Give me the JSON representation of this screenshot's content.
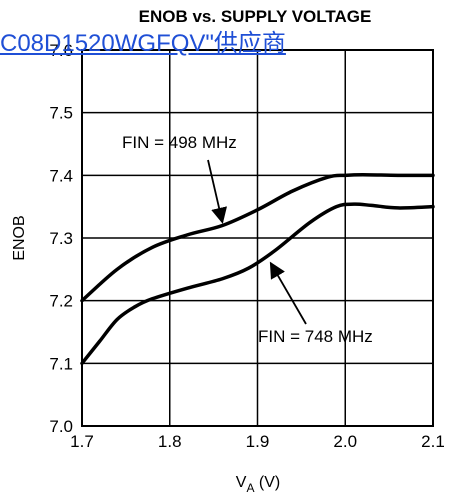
{
  "overlay_link": {
    "text": "C08D1520WGFQV\"供应商",
    "color": "#1f4fd6"
  },
  "chart_data": {
    "type": "line",
    "title": "ENOB vs. SUPPLY VOLTAGE",
    "xlabel_main": "V",
    "xlabel_sub": "A",
    "xlabel_unit": " (V)",
    "ylabel": "ENOB",
    "xlim": [
      1.7,
      2.1
    ],
    "ylim": [
      7.0,
      7.6
    ],
    "x_ticks": [
      "1.7",
      "1.8",
      "1.9",
      "2.0",
      "2.1"
    ],
    "y_ticks": [
      "7.0",
      "7.1",
      "7.2",
      "7.3",
      "7.4",
      "7.5",
      "7.6"
    ],
    "grid": true,
    "series": [
      {
        "name": "FIN = 498 MHz",
        "x": [
          1.7,
          1.74,
          1.78,
          1.82,
          1.86,
          1.9,
          1.94,
          1.98,
          2.0,
          2.02,
          2.06,
          2.1
        ],
        "y": [
          7.2,
          7.25,
          7.285,
          7.305,
          7.32,
          7.345,
          7.375,
          7.397,
          7.4,
          7.401,
          7.4,
          7.4
        ]
      },
      {
        "name": "FIN = 748 MHz",
        "x": [
          1.7,
          1.72,
          1.74,
          1.76,
          1.78,
          1.82,
          1.86,
          1.89,
          1.92,
          1.96,
          1.99,
          2.01,
          2.03,
          2.06,
          2.1
        ],
        "y": [
          7.1,
          7.135,
          7.17,
          7.19,
          7.203,
          7.22,
          7.235,
          7.252,
          7.28,
          7.325,
          7.35,
          7.354,
          7.352,
          7.348,
          7.35
        ]
      }
    ],
    "annotations": [
      {
        "text": "FIN = 498 MHz",
        "series": 0,
        "arrow_to": [
          1.86,
          7.325
        ]
      },
      {
        "text": "FIN = 748 MHz",
        "series": 1,
        "arrow_to": [
          1.915,
          7.26
        ]
      }
    ]
  }
}
